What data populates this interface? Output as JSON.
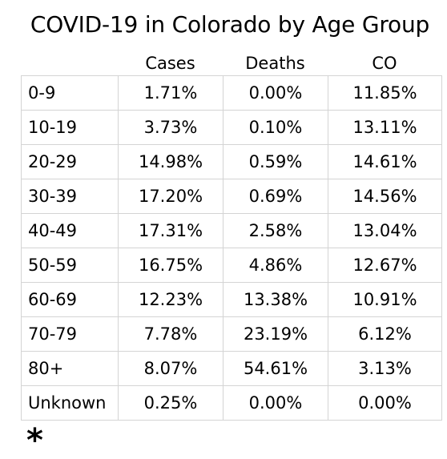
{
  "title": "COVID-19 in Colorado by Age Group",
  "footnote_marker": "*",
  "chart_data": {
    "type": "table",
    "title": "COVID-19 in Colorado by Age Group",
    "columns": [
      "",
      "Cases",
      "Deaths",
      "CO"
    ],
    "rows": [
      [
        "0-9",
        "1.71%",
        "0.00%",
        "11.85%"
      ],
      [
        "10-19",
        "3.73%",
        "0.10%",
        "13.11%"
      ],
      [
        "20-29",
        "14.98%",
        "0.59%",
        "14.61%"
      ],
      [
        "30-39",
        "17.20%",
        "0.69%",
        "14.56%"
      ],
      [
        "40-49",
        "17.31%",
        "2.58%",
        "13.04%"
      ],
      [
        "50-59",
        "16.75%",
        "4.86%",
        "12.67%"
      ],
      [
        "60-69",
        "12.23%",
        "13.38%",
        "10.91%"
      ],
      [
        "70-79",
        "7.78%",
        "23.19%",
        "6.12%"
      ],
      [
        "80+",
        "8.07%",
        "54.61%",
        "3.13%"
      ],
      [
        "Unknown",
        "0.25%",
        "0.00%",
        "0.00%"
      ]
    ]
  }
}
